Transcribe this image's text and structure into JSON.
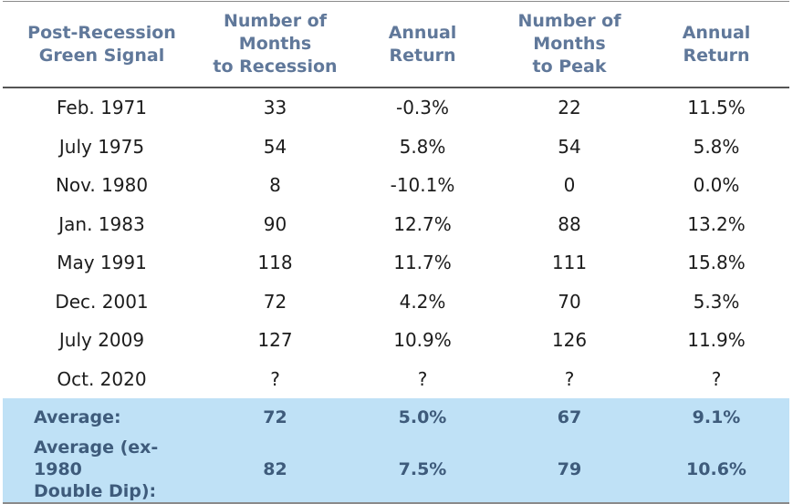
{
  "columns": [
    {
      "line1": "Post-Recession",
      "line2": "Green Signal",
      "line3": ""
    },
    {
      "line1": "Number of",
      "line2": "Months",
      "line3": "to Recession"
    },
    {
      "line1": "Annual",
      "line2": "Return",
      "line3": ""
    },
    {
      "line1": "Number of",
      "line2": "Months",
      "line3": "to Peak"
    },
    {
      "line1": "Annual",
      "line2": "Return",
      "line3": ""
    }
  ],
  "rows": [
    [
      "Feb. 1971",
      "33",
      "-0.3%",
      "22",
      "11.5%"
    ],
    [
      "July 1975",
      "54",
      "5.8%",
      "54",
      "5.8%"
    ],
    [
      "Nov. 1980",
      "8",
      "-10.1%",
      "0",
      "0.0%"
    ],
    [
      "Jan. 1983",
      "90",
      "12.7%",
      "88",
      "13.2%"
    ],
    [
      "May 1991",
      "118",
      "11.7%",
      "111",
      "15.8%"
    ],
    [
      "Dec. 2001",
      "72",
      "4.2%",
      "70",
      "5.3%"
    ],
    [
      "July 2009",
      "127",
      "10.9%",
      "126",
      "11.9%"
    ],
    [
      "Oct. 2020",
      "?",
      "?",
      "?",
      "?"
    ]
  ],
  "averages": [
    {
      "label_line1": "Average:",
      "label_line2": "",
      "values": [
        "72",
        "5.0%",
        "67",
        "9.1%"
      ]
    },
    {
      "label_line1": "Average (ex-1980",
      "label_line2": "Double Dip):",
      "values": [
        "82",
        "7.5%",
        "79",
        "10.6%"
      ]
    }
  ],
  "colors": {
    "header_text": "#60789a",
    "average_band": "#bfe1f6",
    "average_text": "#3e5b7b"
  }
}
